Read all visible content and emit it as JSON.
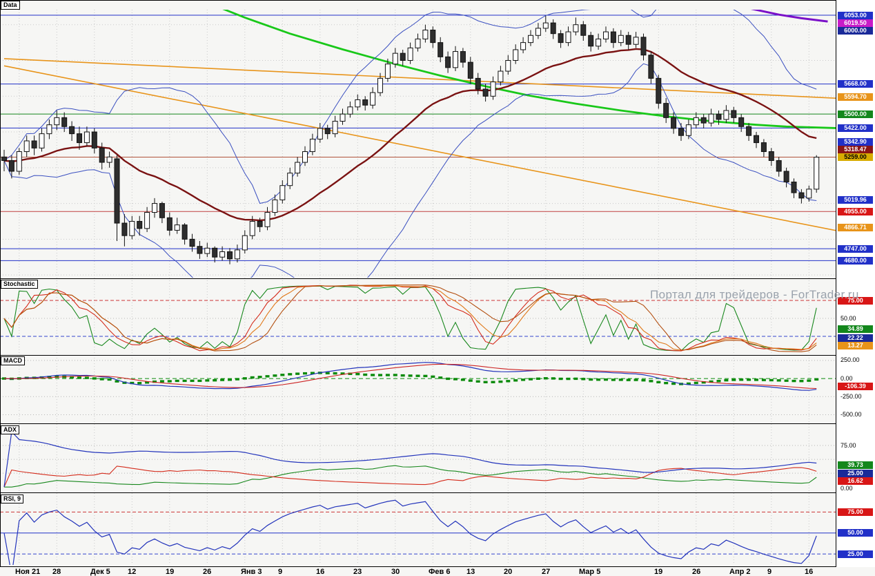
{
  "app": {
    "watermark": "Портал для трейдеров - ForTrader.ru"
  },
  "panels": {
    "price": {
      "label": "Data"
    },
    "stochastic": {
      "label": "Stochastic"
    },
    "macd": {
      "label": "MACD"
    },
    "adx": {
      "label": "ADX"
    },
    "rsi": {
      "label": "RSI, 9"
    }
  },
  "chart_data": {
    "type": "candlestick",
    "timeframe_labels": [
      [
        "Ноя 21",
        2
      ],
      [
        "28",
        7
      ],
      [
        "Дек 5",
        12
      ],
      [
        "12",
        17
      ],
      [
        "19",
        22
      ],
      [
        "26",
        27
      ],
      [
        "Янв 3",
        32
      ],
      [
        "9",
        37
      ],
      [
        "16",
        42
      ],
      [
        "23",
        47
      ],
      [
        "30",
        52
      ],
      [
        "Фев 6",
        57
      ],
      [
        "13",
        62
      ],
      [
        "20",
        67
      ],
      [
        "27",
        72
      ],
      [
        "Мар 5",
        77
      ],
      [
        "19",
        87
      ],
      [
        "26",
        92
      ],
      [
        "Апр 2",
        97
      ],
      [
        "9",
        102
      ],
      [
        "16",
        107
      ]
    ],
    "colors": {
      "candle_up": "#ffffff",
      "candle_down": "#2e2e2e",
      "candle_border": "#111111",
      "bollinger": "#3a4fc0",
      "ema": "#7a1212",
      "green_ma": "#19c819",
      "purple_line": "#7a10c8",
      "trendline": "#e8941a",
      "stoch": [
        "#17871c",
        "#d42a1a",
        "#e07818",
        "#b34f10"
      ],
      "macd_line": "#2233bb",
      "macd_signal": "#cc2222",
      "macd_hist": "#0a8a0a",
      "adx_plus_di": "#17871c",
      "adx_minus_di": "#d42a1a",
      "adx_line": "#2233bb",
      "rsi_line": "#2233bb",
      "grid": "#c9c9c9"
    },
    "candles": [
      [
        5260,
        5300,
        5180,
        5240
      ],
      [
        5240,
        5270,
        5140,
        5180
      ],
      [
        5180,
        5310,
        5160,
        5290
      ],
      [
        5290,
        5380,
        5260,
        5350
      ],
      [
        5350,
        5380,
        5270,
        5310
      ],
      [
        5310,
        5420,
        5290,
        5390
      ],
      [
        5390,
        5470,
        5360,
        5440
      ],
      [
        5440,
        5520,
        5410,
        5480
      ],
      [
        5480,
        5510,
        5400,
        5430
      ],
      [
        5430,
        5460,
        5350,
        5390
      ],
      [
        5390,
        5430,
        5300,
        5340
      ],
      [
        5340,
        5430,
        5320,
        5400
      ],
      [
        5400,
        5420,
        5280,
        5310
      ],
      [
        5310,
        5340,
        5190,
        5230
      ],
      [
        5230,
        5290,
        5200,
        5260
      ],
      [
        5250,
        5270,
        4790,
        4890
      ],
      [
        4890,
        4940,
        4760,
        4820
      ],
      [
        4820,
        4930,
        4800,
        4900
      ],
      [
        4900,
        4930,
        4820,
        4860
      ],
      [
        4860,
        4980,
        4840,
        4950
      ],
      [
        4950,
        5030,
        4920,
        5000
      ],
      [
        5000,
        5010,
        4890,
        4920
      ],
      [
        4920,
        4950,
        4820,
        4850
      ],
      [
        4850,
        4920,
        4830,
        4880
      ],
      [
        4880,
        4890,
        4770,
        4800
      ],
      [
        4800,
        4830,
        4730,
        4760
      ],
      [
        4760,
        4790,
        4690,
        4720
      ],
      [
        4720,
        4780,
        4700,
        4750
      ],
      [
        4750,
        4760,
        4670,
        4700
      ],
      [
        4700,
        4760,
        4680,
        4730
      ],
      [
        4730,
        4750,
        4660,
        4690
      ],
      [
        4690,
        4770,
        4670,
        4740
      ],
      [
        4740,
        4850,
        4720,
        4820
      ],
      [
        4820,
        4930,
        4800,
        4900
      ],
      [
        4900,
        4920,
        4840,
        4870
      ],
      [
        4870,
        4980,
        4850,
        4950
      ],
      [
        4950,
        5050,
        4930,
        5020
      ],
      [
        5020,
        5130,
        5000,
        5100
      ],
      [
        5100,
        5200,
        5080,
        5170
      ],
      [
        5170,
        5260,
        5150,
        5230
      ],
      [
        5230,
        5320,
        5210,
        5290
      ],
      [
        5290,
        5390,
        5270,
        5360
      ],
      [
        5360,
        5450,
        5340,
        5420
      ],
      [
        5420,
        5440,
        5360,
        5390
      ],
      [
        5390,
        5490,
        5370,
        5460
      ],
      [
        5460,
        5530,
        5440,
        5500
      ],
      [
        5500,
        5570,
        5480,
        5540
      ],
      [
        5540,
        5610,
        5520,
        5580
      ],
      [
        5580,
        5600,
        5520,
        5550
      ],
      [
        5550,
        5650,
        5530,
        5620
      ],
      [
        5620,
        5730,
        5600,
        5700
      ],
      [
        5700,
        5810,
        5680,
        5780
      ],
      [
        5780,
        5870,
        5760,
        5840
      ],
      [
        5840,
        5860,
        5770,
        5800
      ],
      [
        5800,
        5900,
        5780,
        5870
      ],
      [
        5870,
        5950,
        5850,
        5920
      ],
      [
        5920,
        6000,
        5900,
        5970
      ],
      [
        5970,
        5990,
        5870,
        5900
      ],
      [
        5900,
        5930,
        5790,
        5820
      ],
      [
        5820,
        5850,
        5730,
        5760
      ],
      [
        5760,
        5880,
        5740,
        5850
      ],
      [
        5850,
        5870,
        5760,
        5790
      ],
      [
        5790,
        5820,
        5670,
        5700
      ],
      [
        5700,
        5730,
        5610,
        5640
      ],
      [
        5640,
        5670,
        5570,
        5600
      ],
      [
        5600,
        5710,
        5580,
        5680
      ],
      [
        5680,
        5770,
        5660,
        5740
      ],
      [
        5740,
        5830,
        5720,
        5800
      ],
      [
        5800,
        5890,
        5780,
        5860
      ],
      [
        5860,
        5930,
        5840,
        5900
      ],
      [
        5900,
        5970,
        5880,
        5940
      ],
      [
        5940,
        6010,
        5920,
        5980
      ],
      [
        5980,
        6050,
        5960,
        6010
      ],
      [
        6010,
        6030,
        5920,
        5950
      ],
      [
        5950,
        5970,
        5870,
        5900
      ],
      [
        5900,
        5990,
        5880,
        5960
      ],
      [
        5960,
        6040,
        5940,
        6000
      ],
      [
        6000,
        6020,
        5910,
        5940
      ],
      [
        5940,
        5960,
        5850,
        5880
      ],
      [
        5880,
        5950,
        5860,
        5920
      ],
      [
        5920,
        5990,
        5900,
        5960
      ],
      [
        5960,
        5980,
        5870,
        5900
      ],
      [
        5900,
        5970,
        5880,
        5940
      ],
      [
        5940,
        5960,
        5860,
        5890
      ],
      [
        5890,
        5960,
        5870,
        5930
      ],
      [
        5930,
        5950,
        5800,
        5830
      ],
      [
        5830,
        5850,
        5670,
        5700
      ],
      [
        5700,
        5720,
        5530,
        5560
      ],
      [
        5560,
        5590,
        5450,
        5480
      ],
      [
        5480,
        5510,
        5390,
        5420
      ],
      [
        5420,
        5450,
        5350,
        5380
      ],
      [
        5380,
        5470,
        5360,
        5440
      ],
      [
        5440,
        5510,
        5420,
        5480
      ],
      [
        5480,
        5500,
        5420,
        5450
      ],
      [
        5450,
        5530,
        5430,
        5500
      ],
      [
        5500,
        5520,
        5440,
        5470
      ],
      [
        5470,
        5550,
        5450,
        5520
      ],
      [
        5520,
        5540,
        5450,
        5480
      ],
      [
        5480,
        5500,
        5400,
        5430
      ],
      [
        5430,
        5450,
        5350,
        5380
      ],
      [
        5380,
        5400,
        5310,
        5340
      ],
      [
        5340,
        5360,
        5260,
        5290
      ],
      [
        5290,
        5310,
        5210,
        5240
      ],
      [
        5240,
        5260,
        5150,
        5180
      ],
      [
        5180,
        5200,
        5090,
        5120
      ],
      [
        5120,
        5140,
        5030,
        5060
      ],
      [
        5060,
        5080,
        5000,
        5030
      ],
      [
        5030,
        5100,
        5010,
        5080
      ],
      [
        5080,
        5270,
        5060,
        5259
      ]
    ],
    "panels": {
      "price": {
        "ylim": [
          4585,
          6084
        ],
        "gridlines": [
          4600,
          4800,
          5000,
          5200,
          5400,
          5600,
          5800,
          6000
        ],
        "h_lines": [
          {
            "v": 6053,
            "c": "#2130c8",
            "w": 1
          },
          {
            "v": 5668,
            "c": "#2130c8",
            "w": 1
          },
          {
            "v": 5500,
            "c": "#13871c",
            "w": 1
          },
          {
            "v": 5422,
            "c": "#2130c8",
            "w": 1
          },
          {
            "v": 5259,
            "c": "#b0523a",
            "w": 1
          },
          {
            "v": 4955,
            "c": "#c04040",
            "w": 1
          },
          {
            "v": 4747,
            "c": "#2130c8",
            "w": 1
          },
          {
            "v": 4680,
            "c": "#2130c8",
            "w": 1
          }
        ],
        "overlays": {
          "ema_period": 24,
          "bb_period": 20,
          "bb_mult": 2,
          "green_ma_points": [
            [
              26,
              6140
            ],
            [
              32,
              6040
            ],
            [
              38,
              5950
            ],
            [
              45,
              5862
            ],
            [
              52,
              5780
            ],
            [
              58,
              5715
            ],
            [
              64,
              5655
            ],
            [
              70,
              5602
            ],
            [
              76,
              5558
            ],
            [
              82,
              5520
            ],
            [
              88,
              5487
            ],
            [
              94,
              5460
            ],
            [
              100,
              5440
            ],
            [
              104,
              5430
            ],
            [
              111,
              5421
            ]
          ],
          "purple_line_points": [
            [
              95,
              6128
            ],
            [
              99,
              6092
            ],
            [
              103,
              6056
            ],
            [
              106,
              6036
            ],
            [
              109.5,
              6018
            ]
          ],
          "trendlines": [
            {
              "p1": [
                0,
                5810
              ],
              "p2": [
                111,
                5588
              ]
            },
            {
              "p1": [
                0,
                5770
              ],
              "p2": [
                111,
                4845
              ]
            }
          ]
        },
        "right_labels": [
          {
            "v": 6053,
            "text": "6053.00",
            "bg": "#2130c8"
          },
          {
            "v": 6019.5,
            "text": "6019.50",
            "bg": "#c81cc8"
          },
          {
            "v": 6000,
            "text": "6000.00",
            "bg": "#1a2a99"
          },
          {
            "v": 5668,
            "text": "5668.00",
            "bg": "#2130c8"
          },
          {
            "v": 5594.7,
            "text": "5594.70",
            "bg": "#e8941a"
          },
          {
            "v": 5500,
            "text": "5500.00",
            "bg": "#13871c"
          },
          {
            "v": 5422,
            "text": "5422.00",
            "bg": "#2130c8"
          },
          {
            "v": 5342.9,
            "text": "5342.90",
            "bg": "#2130c8"
          },
          {
            "v": 5318.47,
            "text": "5318.47",
            "bg": "#8a1515"
          },
          {
            "v": 5259,
            "text": "5259.00",
            "bg": "#d8ac00",
            "fg": "#000000"
          },
          {
            "v": 5019.96,
            "text": "5019.96",
            "bg": "#2130c8"
          },
          {
            "v": 4955,
            "text": "4955.00",
            "bg": "#d81616"
          },
          {
            "v": 4866.71,
            "text": "4866.71",
            "bg": "#e8941a"
          },
          {
            "v": 4747,
            "text": "4747.00",
            "bg": "#2130c8"
          },
          {
            "v": 4680,
            "text": "4680.00",
            "bg": "#2130c8"
          }
        ]
      },
      "stochastic": {
        "ylim": [
          0,
          101
        ],
        "periods": [
          9,
          14,
          21
        ],
        "levels": [
          {
            "v": 75,
            "c": "#cc3333",
            "dash": "5,3"
          },
          {
            "v": 50,
            "c": "#b5b5b5",
            "dash": "1,3"
          },
          {
            "v": 25,
            "c": "#3344cc",
            "dash": "5,3"
          }
        ],
        "right_labels": [
          {
            "v": 75,
            "text": "75.00",
            "bg": "#d81616"
          },
          {
            "v": 50,
            "text": "50.00",
            "plain": true
          },
          {
            "v": 34.89,
            "text": "34.89",
            "bg": "#13871c"
          },
          {
            "v": 22.22,
            "text": "22.22",
            "bg": "#1a2a99"
          },
          {
            "v": 13.27,
            "text": "13.27",
            "bg": "#e8941a"
          }
        ]
      },
      "macd": {
        "ylim": [
          -600,
          306
        ],
        "params": [
          12,
          26,
          9
        ],
        "levels": [
          {
            "v": 250,
            "c": "#b5b5b5",
            "dash": "1,3"
          },
          {
            "v": 0,
            "c": "#0a8a0a",
            "dash": "6,4"
          },
          {
            "v": -250,
            "c": "#b5b5b5",
            "dash": "1,3"
          },
          {
            "v": -500,
            "c": "#b5b5b5",
            "dash": "1,3"
          }
        ],
        "right_labels": [
          {
            "v": 250,
            "text": "250.00",
            "plain": true
          },
          {
            "v": 0,
            "text": "0.00",
            "plain": true
          },
          {
            "v": -106.39,
            "text": "-106.39",
            "bg": "#d81616"
          },
          {
            "v": -250,
            "text": "-250.00",
            "plain": true
          },
          {
            "v": -500,
            "text": "-500.00",
            "plain": true
          }
        ]
      },
      "adx": {
        "ylim": [
          -6,
          110
        ],
        "period": 14,
        "levels": [
          {
            "v": 75,
            "c": "#b5b5b5",
            "dash": "1,3"
          },
          {
            "v": 50,
            "c": "#b5b5b5",
            "dash": "1,3"
          },
          {
            "v": 25,
            "c": "#b5b5b5",
            "dash": "1,3"
          }
        ],
        "right_labels": [
          {
            "v": 75,
            "text": "75.00",
            "plain": true
          },
          {
            "v": 39.73,
            "text": "39.73",
            "bg": "#13871c"
          },
          {
            "v": 25,
            "text": "25.00",
            "bg": "#1a2a99"
          },
          {
            "v": 16.62,
            "text": "16.62",
            "bg": "#d81616"
          },
          {
            "v": 0,
            "text": "0.00",
            "plain": true
          }
        ]
      },
      "rsi": {
        "ylim": [
          12,
          95
        ],
        "period": 9,
        "levels": [
          {
            "v": 75,
            "c": "#cc3333",
            "dash": "5,3"
          },
          {
            "v": 50,
            "c": "#2130c8",
            "dash": ""
          },
          {
            "v": 25,
            "c": "#3344cc",
            "dash": "5,3"
          }
        ],
        "right_labels": [
          {
            "v": 75,
            "text": "75.00",
            "bg": "#d81616"
          },
          {
            "v": 50,
            "text": "50.00",
            "bg": "#2130c8"
          },
          {
            "v": 25,
            "text": "25.00",
            "bg": "#2130c8"
          }
        ]
      }
    }
  }
}
